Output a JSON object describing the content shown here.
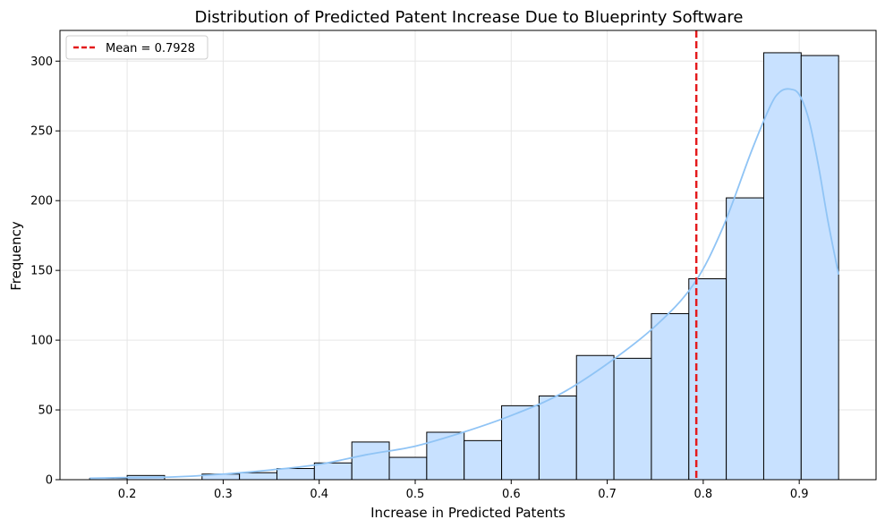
{
  "chart_data": {
    "type": "histogram",
    "title": "Distribution of Predicted Patent Increase Due to Blueprinty Software",
    "xlabel": "Increase in Predicted Patents",
    "ylabel": "Frequency",
    "xlim": [
      0.13,
      0.98
    ],
    "ylim": [
      0,
      322
    ],
    "xticks": [
      0.2,
      0.3,
      0.4,
      0.5,
      0.6,
      0.7,
      0.8,
      0.9
    ],
    "yticks": [
      0,
      50,
      100,
      150,
      200,
      250,
      300
    ],
    "grid": true,
    "legend_position": "upper-left",
    "bins": [
      {
        "x0": 0.161,
        "x1": 0.2,
        "count": 1
      },
      {
        "x0": 0.2,
        "x1": 0.239,
        "count": 3
      },
      {
        "x0": 0.239,
        "x1": 0.278,
        "count": 0
      },
      {
        "x0": 0.278,
        "x1": 0.317,
        "count": 4
      },
      {
        "x0": 0.317,
        "x1": 0.356,
        "count": 5
      },
      {
        "x0": 0.356,
        "x1": 0.395,
        "count": 8
      },
      {
        "x0": 0.395,
        "x1": 0.434,
        "count": 12
      },
      {
        "x0": 0.434,
        "x1": 0.473,
        "count": 27
      },
      {
        "x0": 0.473,
        "x1": 0.512,
        "count": 16
      },
      {
        "x0": 0.512,
        "x1": 0.551,
        "count": 34
      },
      {
        "x0": 0.551,
        "x1": 0.59,
        "count": 28
      },
      {
        "x0": 0.59,
        "x1": 0.629,
        "count": 53
      },
      {
        "x0": 0.629,
        "x1": 0.668,
        "count": 60
      },
      {
        "x0": 0.668,
        "x1": 0.707,
        "count": 89
      },
      {
        "x0": 0.707,
        "x1": 0.746,
        "count": 87
      },
      {
        "x0": 0.746,
        "x1": 0.785,
        "count": 119
      },
      {
        "x0": 0.785,
        "x1": 0.824,
        "count": 144
      },
      {
        "x0": 0.824,
        "x1": 0.863,
        "count": 202
      },
      {
        "x0": 0.863,
        "x1": 0.902,
        "count": 306
      },
      {
        "x0": 0.902,
        "x1": 0.941,
        "count": 304
      }
    ],
    "kde": {
      "x": [
        0.161,
        0.2,
        0.25,
        0.3,
        0.35,
        0.4,
        0.45,
        0.5,
        0.55,
        0.6,
        0.65,
        0.7,
        0.75,
        0.79,
        0.82,
        0.85,
        0.87,
        0.88,
        0.89,
        0.9,
        0.91,
        0.92,
        0.93,
        0.941
      ],
      "y": [
        1,
        1.5,
        2,
        4,
        7,
        11,
        18,
        24,
        34,
        46,
        61,
        83,
        110,
        140,
        180,
        235,
        268,
        278,
        280,
        276,
        258,
        225,
        185,
        147
      ]
    },
    "mean_line": {
      "x": 0.7928,
      "label": "Mean = 0.7928",
      "color": "#e41a1c"
    },
    "colors": {
      "bar_fill": "#c8e1ff",
      "bar_edge": "#000000",
      "kde_line": "#90c4f5",
      "grid": "#e6e6e6"
    }
  }
}
